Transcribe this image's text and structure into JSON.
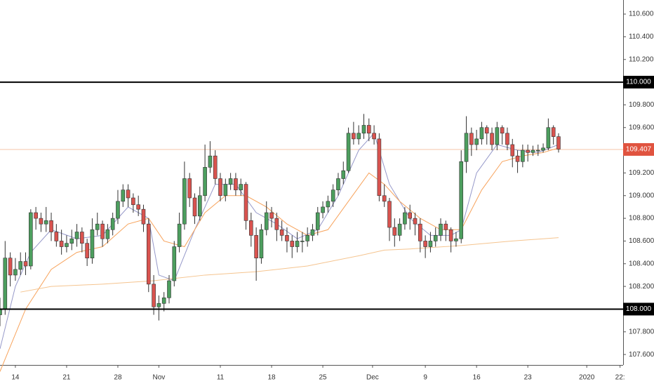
{
  "chart_data": {
    "type": "candlestick",
    "open": [
      107.95,
      108.0,
      108.45,
      108.3,
      108.35,
      108.42,
      108.38,
      108.85,
      108.8,
      108.75,
      108.78,
      108.68,
      108.6,
      108.55,
      108.58,
      108.62,
      108.68,
      108.58,
      108.45,
      108.7,
      108.75,
      108.62,
      108.7,
      108.8,
      108.95,
      109.05,
      108.98,
      108.92,
      108.88,
      108.75,
      108.22,
      108.02,
      108.05,
      108.1,
      108.25,
      108.55,
      108.75,
      109.15,
      108.98,
      108.82,
      109.0,
      109.25,
      109.35,
      109.15,
      109.0,
      109.1,
      109.15,
      109.05,
      109.1,
      108.78,
      108.65,
      108.45,
      108.7,
      108.85,
      108.8,
      108.7,
      108.65,
      108.6,
      108.55,
      108.6,
      108.6,
      108.65,
      108.7,
      108.85,
      108.9,
      108.95,
      109.05,
      109.15,
      109.22,
      109.55,
      109.5,
      109.55,
      109.62,
      109.55,
      109.5,
      109.0,
      108.95,
      108.72,
      108.65,
      108.75,
      108.85,
      108.8,
      108.75,
      108.6,
      108.55,
      108.6,
      108.65,
      108.75,
      108.7,
      108.6,
      108.62,
      109.3,
      109.55,
      109.45,
      109.5,
      109.6,
      109.55,
      109.45,
      109.6,
      109.55,
      109.45,
      109.35,
      109.3,
      109.4,
      109.38,
      109.4,
      109.4,
      109.42,
      109.6,
      109.52
    ],
    "high": [
      108.1,
      108.6,
      108.5,
      108.45,
      108.5,
      108.5,
      108.88,
      108.9,
      108.85,
      108.9,
      108.85,
      108.75,
      108.7,
      108.65,
      108.7,
      108.75,
      108.72,
      108.62,
      108.8,
      108.85,
      108.78,
      108.75,
      108.85,
      109.05,
      109.1,
      109.1,
      109.02,
      109.0,
      108.92,
      108.8,
      108.3,
      108.12,
      108.15,
      108.3,
      108.6,
      108.85,
      109.3,
      109.2,
      109.02,
      109.08,
      109.45,
      109.48,
      109.4,
      109.2,
      109.15,
      109.2,
      109.2,
      109.15,
      109.12,
      108.85,
      108.72,
      108.75,
      108.95,
      108.9,
      108.85,
      108.78,
      108.72,
      108.65,
      108.68,
      108.68,
      108.72,
      108.75,
      108.9,
      108.95,
      109.0,
      109.1,
      109.2,
      109.3,
      109.6,
      109.65,
      109.62,
      109.72,
      109.68,
      109.62,
      109.55,
      109.1,
      108.98,
      108.8,
      108.8,
      108.9,
      108.92,
      108.85,
      108.8,
      108.65,
      108.68,
      108.72,
      108.8,
      108.78,
      108.72,
      108.68,
      109.4,
      109.7,
      109.6,
      109.58,
      109.65,
      109.62,
      109.6,
      109.65,
      109.62,
      109.6,
      109.5,
      109.4,
      109.45,
      109.45,
      109.44,
      109.45,
      109.46,
      109.68,
      109.62,
      109.55
    ],
    "low": [
      107.85,
      107.95,
      108.2,
      108.25,
      108.3,
      108.3,
      108.35,
      108.7,
      108.68,
      108.68,
      108.6,
      108.55,
      108.48,
      108.5,
      108.52,
      108.55,
      108.5,
      108.38,
      108.4,
      108.65,
      108.55,
      108.58,
      108.65,
      108.75,
      108.9,
      108.9,
      108.85,
      108.82,
      108.68,
      108.15,
      107.95,
      107.9,
      107.98,
      108.05,
      108.2,
      108.5,
      108.7,
      108.9,
      108.75,
      108.78,
      108.95,
      109.2,
      109.1,
      108.95,
      108.95,
      109.05,
      109.0,
      109.0,
      108.7,
      108.55,
      108.25,
      108.4,
      108.65,
      108.72,
      108.6,
      108.6,
      108.5,
      108.45,
      108.5,
      108.5,
      108.55,
      108.6,
      108.65,
      108.8,
      108.85,
      108.9,
      109.0,
      109.1,
      109.2,
      109.45,
      109.45,
      109.5,
      109.48,
      109.45,
      108.95,
      108.9,
      108.6,
      108.55,
      108.6,
      108.7,
      108.7,
      108.65,
      108.5,
      108.45,
      108.5,
      108.55,
      108.6,
      108.6,
      108.5,
      108.55,
      108.58,
      109.2,
      109.35,
      109.4,
      109.45,
      109.45,
      109.4,
      109.4,
      109.45,
      109.4,
      109.25,
      109.2,
      109.25,
      109.3,
      109.35,
      109.35,
      109.38,
      109.4,
      109.45,
      109.38
    ],
    "close": [
      108.0,
      108.45,
      108.3,
      108.35,
      108.42,
      108.38,
      108.85,
      108.8,
      108.75,
      108.78,
      108.68,
      108.6,
      108.55,
      108.58,
      108.62,
      108.68,
      108.58,
      108.45,
      108.7,
      108.75,
      108.62,
      108.7,
      108.8,
      108.95,
      109.05,
      108.98,
      108.92,
      108.88,
      108.75,
      108.22,
      108.02,
      108.05,
      108.1,
      108.25,
      108.55,
      108.75,
      109.15,
      108.98,
      108.82,
      109.0,
      109.25,
      109.35,
      109.15,
      109.0,
      109.1,
      109.15,
      109.05,
      109.1,
      108.78,
      108.65,
      108.45,
      108.7,
      108.85,
      108.8,
      108.7,
      108.65,
      108.6,
      108.55,
      108.6,
      108.6,
      108.65,
      108.7,
      108.85,
      108.9,
      108.95,
      109.05,
      109.15,
      109.22,
      109.55,
      109.5,
      109.55,
      109.62,
      109.55,
      109.5,
      109.0,
      108.95,
      108.72,
      108.65,
      108.75,
      108.85,
      108.8,
      108.75,
      108.6,
      108.55,
      108.6,
      108.65,
      108.75,
      108.7,
      108.6,
      108.62,
      109.3,
      109.55,
      109.45,
      109.5,
      109.6,
      109.55,
      109.45,
      109.6,
      109.55,
      109.45,
      109.35,
      109.3,
      109.4,
      109.38,
      109.4,
      109.4,
      109.42,
      109.6,
      109.52,
      109.41
    ],
    "up_color": "#4c9e5e",
    "down_color": "#d9534f",
    "wick_color": "#333333",
    "lines": [
      {
        "color": "#9598c9",
        "x": [
          0,
          3,
          6,
          10,
          15,
          20,
          25,
          29,
          31,
          34,
          38,
          42,
          46,
          50,
          54,
          58,
          62,
          66,
          70,
          73,
          76,
          80,
          84,
          88,
          90,
          93,
          97,
          101,
          105,
          109
        ],
        "values": [
          107.65,
          108.2,
          108.5,
          108.7,
          108.62,
          108.65,
          108.9,
          108.8,
          108.3,
          108.25,
          108.7,
          109.1,
          109.1,
          108.85,
          108.75,
          108.62,
          108.7,
          109.0,
          109.4,
          109.55,
          109.1,
          108.8,
          108.65,
          108.65,
          108.7,
          109.2,
          109.45,
          109.4,
          109.38,
          109.45
        ]
      },
      {
        "color": "#f7a35c",
        "x": [
          0,
          5,
          10,
          15,
          20,
          25,
          29,
          32,
          36,
          40,
          44,
          48,
          52,
          56,
          60,
          64,
          68,
          72,
          75,
          78,
          82,
          86,
          90,
          94,
          98,
          102,
          106,
          109
        ],
        "values": [
          107.45,
          108.0,
          108.35,
          108.5,
          108.55,
          108.75,
          108.8,
          108.6,
          108.55,
          108.85,
          109.0,
          109.0,
          108.9,
          108.75,
          108.65,
          108.7,
          108.95,
          109.2,
          109.1,
          108.95,
          108.8,
          108.7,
          108.7,
          109.05,
          109.3,
          109.35,
          109.38,
          109.42
        ]
      },
      {
        "color": "#f5c48f",
        "x": [
          4,
          10,
          20,
          30,
          40,
          50,
          60,
          70,
          75,
          80,
          90,
          100,
          109
        ],
        "values": [
          108.15,
          108.2,
          108.22,
          108.25,
          108.3,
          108.33,
          108.38,
          108.47,
          108.52,
          108.53,
          108.56,
          108.6,
          108.63
        ]
      }
    ],
    "levels": [
      {
        "value": 110,
        "label": "110.000"
      },
      {
        "value": 108,
        "label": "108.000"
      }
    ],
    "level_color": "#000000",
    "last_price": {
      "value": 109.407,
      "label": "109.407",
      "color": "#e0533f",
      "line_color": "#f5c4a8"
    },
    "xlim": [
      0,
      121.6
    ],
    "xticks": [
      {
        "value": 3,
        "label": "14"
      },
      {
        "value": 13,
        "label": "21"
      },
      {
        "value": 23,
        "label": "28"
      },
      {
        "value": 31,
        "label": "Nov"
      },
      {
        "value": 43,
        "label": "11"
      },
      {
        "value": 53,
        "label": "18"
      },
      {
        "value": 63,
        "label": "25"
      },
      {
        "value": 72.7,
        "label": "Dec"
      },
      {
        "value": 83,
        "label": "9"
      },
      {
        "value": 93,
        "label": "16"
      },
      {
        "value": 103,
        "label": "23"
      },
      {
        "value": 114.5,
        "label": "2020"
      },
      {
        "value": 121,
        "label": "22:"
      }
    ],
    "ylim": [
      107.508,
      110.724
    ],
    "yticks": [
      {
        "value": 107.6,
        "label": "107.600"
      },
      {
        "value": 107.8,
        "label": "107.800"
      },
      {
        "value": 108.2,
        "label": "108.200"
      },
      {
        "value": 108.4,
        "label": "108.400"
      },
      {
        "value": 108.6,
        "label": "108.600"
      },
      {
        "value": 108.8,
        "label": "108.800"
      },
      {
        "value": 109.0,
        "label": "109.000"
      },
      {
        "value": 109.2,
        "label": "109.200"
      },
      {
        "value": 109.6,
        "label": "109.600"
      },
      {
        "value": 109.8,
        "label": "109.800"
      },
      {
        "value": 110.2,
        "label": "110.200"
      },
      {
        "value": 110.4,
        "label": "110.400"
      },
      {
        "value": 110.6,
        "label": "110.600"
      }
    ]
  }
}
